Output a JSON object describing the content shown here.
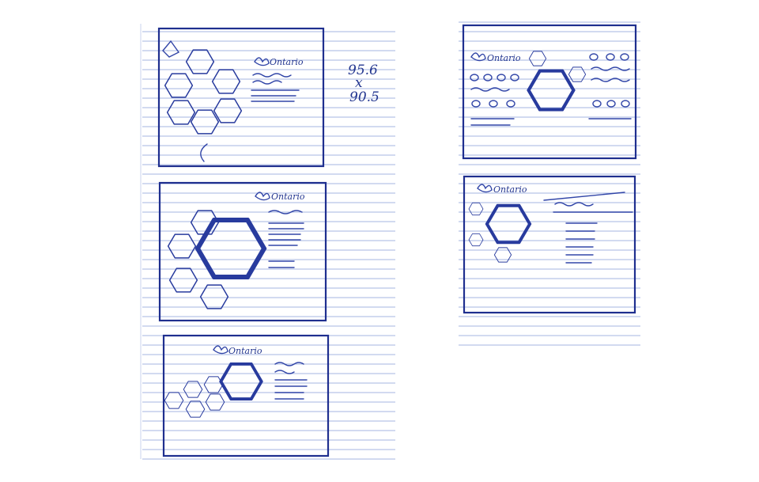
{
  "notes": {
    "dimension_width": "95.6",
    "dimension_by": "x",
    "dimension_height": "90.5"
  },
  "logo": {
    "text": "Ontario"
  },
  "colors": {
    "ink": "#283b9e",
    "paper": "#ffffff",
    "ruled_lines": "#b7c4e6"
  },
  "icons": [
    "trillium-logo-icon",
    "hexagon-icon"
  ]
}
